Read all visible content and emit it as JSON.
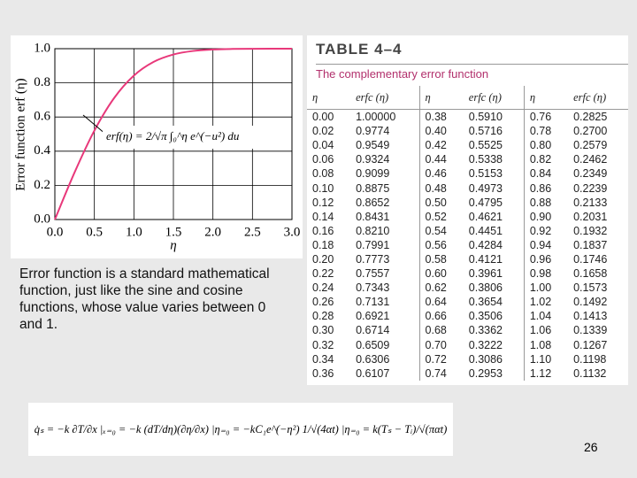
{
  "chart_data": {
    "type": "line",
    "ylabel": "Error function erf (η)",
    "xlabel": "η",
    "annotation": "erf(η) = 2/√π ∫₀^η e^(−u²) du",
    "x": [
      0,
      0.25,
      0.5,
      0.75,
      1.0,
      1.25,
      1.5,
      1.75,
      2.0,
      2.25,
      2.5,
      2.75,
      3.0
    ],
    "values": [
      0,
      0.2763,
      0.5205,
      0.7112,
      0.8427,
      0.9229,
      0.9661,
      0.9867,
      0.9953,
      0.9985,
      0.9996,
      0.9999,
      1.0
    ],
    "color": "#e8387a",
    "xlim": [
      0,
      3.0
    ],
    "ylim": [
      0,
      1.0
    ],
    "xticks": [
      {
        "value": 0,
        "label": "0.0"
      },
      {
        "value": 0.5,
        "label": "0.5"
      },
      {
        "value": 1,
        "label": "1.0"
      },
      {
        "value": 1.5,
        "label": "1.5"
      },
      {
        "value": 2,
        "label": "2.0"
      },
      {
        "value": 2.5,
        "label": "2.5"
      },
      {
        "value": 3,
        "label": "3.0"
      }
    ],
    "yticks": [
      {
        "value": 0,
        "label": "0.0"
      },
      {
        "value": 0.2,
        "label": "0.2"
      },
      {
        "value": 0.4,
        "label": "0.4"
      },
      {
        "value": 0.6,
        "label": "0.6"
      },
      {
        "value": 0.8,
        "label": "0.8"
      },
      {
        "value": 1,
        "label": "1.0"
      }
    ],
    "grid": true
  },
  "text": "Error function is a standard mathematical function, just like the sine and cosine functions, whose value varies between 0 and 1.",
  "table": {
    "title": "TABLE 4–4",
    "subtitle": "The complementary error function",
    "headers": [
      "η",
      "erfc (η)",
      "η",
      "erfc (η)",
      "η",
      "erfc (η)"
    ],
    "rows": [
      [
        "0.00",
        "1.00000",
        "0.38",
        "0.5910",
        "0.76",
        "0.2825"
      ],
      [
        "0.02",
        "0.9774",
        "0.40",
        "0.5716",
        "0.78",
        "0.2700"
      ],
      [
        "0.04",
        "0.9549",
        "0.42",
        "0.5525",
        "0.80",
        "0.2579"
      ],
      [
        "0.06",
        "0.9324",
        "0.44",
        "0.5338",
        "0.82",
        "0.2462"
      ],
      [
        "0.08",
        "0.9099",
        "0.46",
        "0.5153",
        "0.84",
        "0.2349"
      ],
      [
        "0.10",
        "0.8875",
        "0.48",
        "0.4973",
        "0.86",
        "0.2239"
      ],
      [
        "0.12",
        "0.8652",
        "0.50",
        "0.4795",
        "0.88",
        "0.2133"
      ],
      [
        "0.14",
        "0.8431",
        "0.52",
        "0.4621",
        "0.90",
        "0.2031"
      ],
      [
        "0.16",
        "0.8210",
        "0.54",
        "0.4451",
        "0.92",
        "0.1932"
      ],
      [
        "0.18",
        "0.7991",
        "0.56",
        "0.4284",
        "0.94",
        "0.1837"
      ],
      [
        "0.20",
        "0.7773",
        "0.58",
        "0.4121",
        "0.96",
        "0.1746"
      ],
      [
        "0.22",
        "0.7557",
        "0.60",
        "0.3961",
        "0.98",
        "0.1658"
      ],
      [
        "0.24",
        "0.7343",
        "0.62",
        "0.3806",
        "1.00",
        "0.1573"
      ],
      [
        "0.26",
        "0.7131",
        "0.64",
        "0.3654",
        "1.02",
        "0.1492"
      ],
      [
        "0.28",
        "0.6921",
        "0.66",
        "0.3506",
        "1.04",
        "0.1413"
      ],
      [
        "0.30",
        "0.6714",
        "0.68",
        "0.3362",
        "1.06",
        "0.1339"
      ],
      [
        "0.32",
        "0.6509",
        "0.70",
        "0.3222",
        "1.08",
        "0.1267"
      ],
      [
        "0.34",
        "0.6306",
        "0.72",
        "0.3086",
        "1.10",
        "0.1198"
      ],
      [
        "0.36",
        "0.6107",
        "0.74",
        "0.2953",
        "1.12",
        "0.1132"
      ]
    ]
  },
  "equation": "q̇ₛ = −k ∂T/∂x |ₓ₌₀ = −k (dT/dη)(∂η/∂x) |η₌₀ = −kC₁e^(−η²) 1/√(4αt) |η₌₀ = k(Tₛ − Tᵢ)/√(παt)",
  "page_number": "26"
}
